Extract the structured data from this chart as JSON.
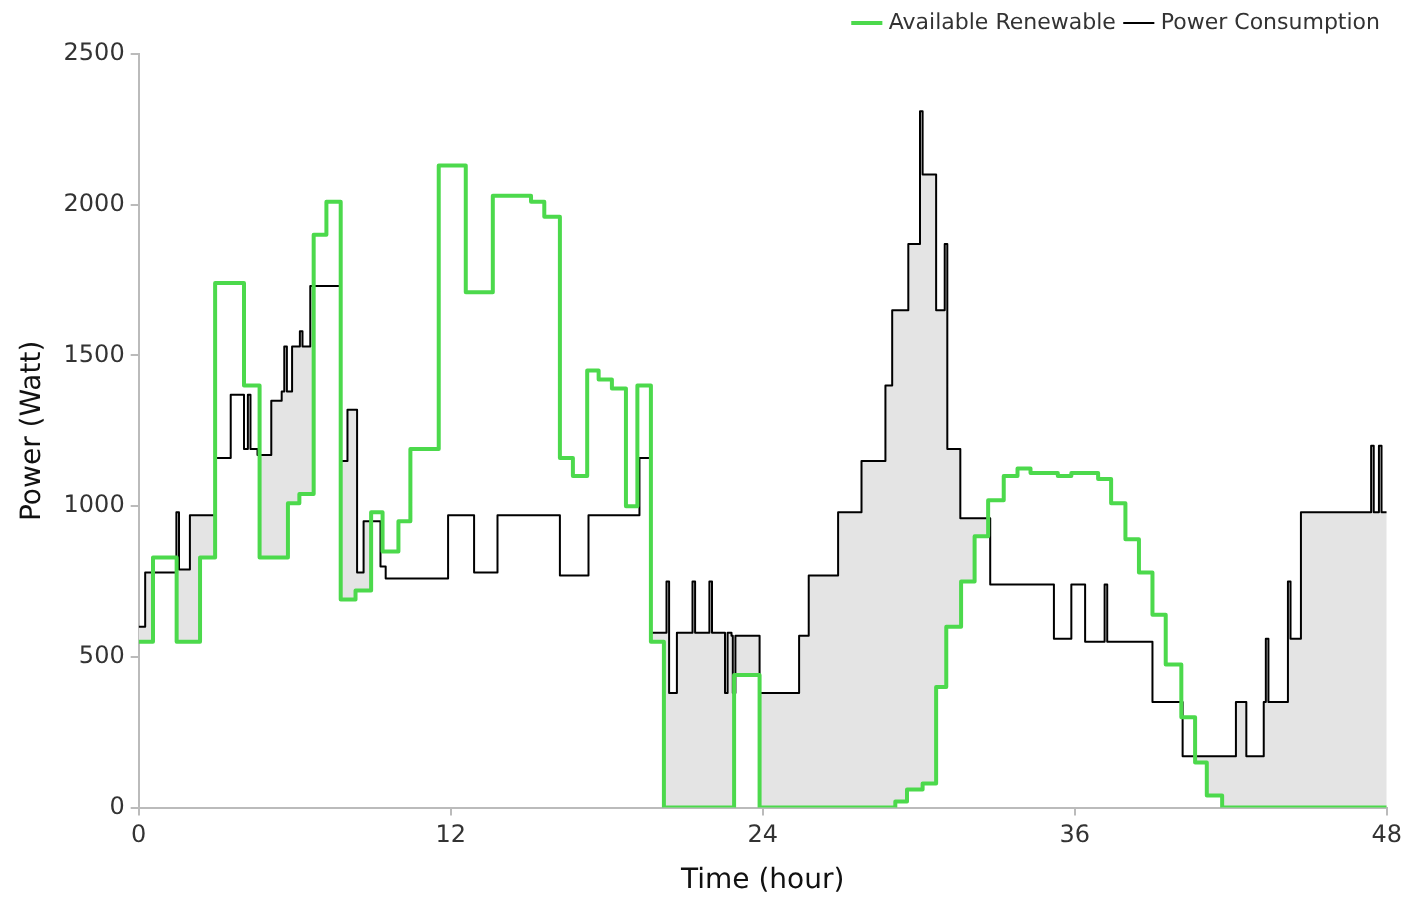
{
  "chart_data": {
    "type": "step",
    "xlabel": "Time (hour)",
    "ylabel": "Power (Watt)",
    "xlim": [
      0,
      48
    ],
    "xticks": [
      0,
      12,
      24,
      36,
      48
    ],
    "ylim": [
      0,
      2500
    ],
    "yticks": [
      0,
      500,
      1000,
      1500,
      2000,
      2500
    ],
    "grid": false,
    "legend": "top right",
    "marker": "none",
    "line_style": "solid",
    "series": [
      {
        "name": "Available Renewable",
        "color": "#4cd94c",
        "x": [
          0,
          0.55,
          1.46,
          2.36,
          2.94,
          4.05,
          4.65,
          5.74,
          6.18,
          6.73,
          7.22,
          7.77,
          8.34,
          8.94,
          9.38,
          9.99,
          10.45,
          11.54,
          12.58,
          13.62,
          15.09,
          15.6,
          16.2,
          16.7,
          17.25,
          17.69,
          18.2,
          18.74,
          19.18,
          19.7,
          20.2,
          22.9,
          23.88,
          29.1,
          29.55,
          30.15,
          30.67,
          31.06,
          31.63,
          32.15,
          32.67,
          33.27,
          33.8,
          34.3,
          35.35,
          35.87,
          36.9,
          37.4,
          37.95,
          38.47,
          38.99,
          39.5,
          40.1,
          40.63,
          41.08,
          41.67,
          48
        ],
        "values": [
          550,
          830,
          550,
          830,
          1740,
          1400,
          830,
          1010,
          1040,
          1900,
          2010,
          690,
          720,
          980,
          850,
          950,
          1190,
          2130,
          1710,
          2030,
          2010,
          1960,
          1160,
          1100,
          1450,
          1420,
          1390,
          1000,
          1400,
          550,
          0,
          440,
          0,
          20,
          60,
          80,
          400,
          600,
          750,
          900,
          1020,
          1100,
          1125,
          1110,
          1100,
          1110,
          1090,
          1010,
          890,
          780,
          640,
          475,
          300,
          150,
          40,
          0,
          0
        ]
      },
      {
        "name": "Power Consumption",
        "color": "#000000",
        "x": [
          0,
          0.25,
          0.55,
          1.45,
          1.46,
          1.55,
          1.97,
          2.36,
          2.94,
          3.54,
          4.05,
          4.2,
          4.3,
          4.57,
          4.65,
          5.1,
          5.5,
          5.6,
          5.7,
          5.74,
          5.9,
          6.18,
          6.2,
          6.3,
          6.6,
          6.73,
          7.77,
          8.03,
          8.34,
          8.4,
          8.65,
          8.94,
          9.3,
          9.5,
          11.9,
          12.9,
          13.8,
          16.2,
          17.3,
          19.26,
          19.7,
          20.2,
          20.3,
          20.4,
          20.7,
          21.3,
          21.4,
          21.95,
          22.05,
          22.55,
          22.65,
          22.8,
          22.85,
          22.9,
          22.95,
          23.88,
          25.4,
          25.77,
          26.9,
          27.8,
          28.72,
          28.98,
          29.1,
          29.55,
          29.6,
          30.05,
          30.15,
          30.67,
          31.0,
          31.06,
          31.1,
          31.6,
          31.63,
          32.15,
          32.67,
          32.75,
          35.2,
          35.87,
          36.4,
          37.15,
          37.25,
          38.99,
          40.1,
          40.15,
          40.63,
          41.08,
          41.67,
          42.2,
          42.6,
          43.27,
          43.35,
          43.45,
          44.2,
          44.3,
          44.7,
          47.4,
          47.5,
          47.7,
          47.8,
          48
        ],
        "values": [
          600,
          780,
          780,
          980,
          980,
          790,
          970,
          970,
          1160,
          1370,
          1190,
          1370,
          1190,
          1170,
          1170,
          1350,
          1380,
          1530,
          1380,
          1380,
          1530,
          1530,
          1580,
          1530,
          1730,
          1730,
          1150,
          1320,
          1320,
          780,
          950,
          950,
          800,
          760,
          970,
          780,
          970,
          770,
          970,
          1160,
          580,
          580,
          750,
          380,
          580,
          750,
          580,
          750,
          580,
          380,
          580,
          570,
          380,
          380,
          570,
          380,
          570,
          770,
          980,
          1150,
          1400,
          1650,
          1650,
          1650,
          1870,
          2310,
          2100,
          1650,
          1870,
          1870,
          1190,
          960,
          960,
          960,
          960,
          740,
          560,
          740,
          550,
          740,
          550,
          350,
          350,
          170,
          170,
          170,
          170,
          350,
          170,
          350,
          560,
          350,
          750,
          560,
          980,
          1200,
          980,
          1200,
          980,
          980
        ],
        "upper": [
          600,
          780,
          780,
          980,
          980,
          790,
          970,
          970,
          1160,
          1370,
          1190,
          1370,
          1190,
          1170,
          1170,
          1350,
          1380,
          1530,
          1380,
          1380,
          1530,
          1530,
          1580,
          1530,
          1730,
          1730,
          1150,
          1320,
          1320,
          780,
          950,
          950,
          800,
          760,
          970,
          780,
          970,
          770,
          970,
          1160,
          580,
          580,
          750,
          380,
          580,
          750,
          580,
          750,
          580,
          380,
          580,
          570,
          380,
          380,
          570,
          380,
          570,
          770,
          980,
          1150,
          1400,
          1650,
          1650,
          1650,
          1870,
          2310,
          2100,
          1650,
          1870,
          1870,
          1190,
          960,
          960,
          960,
          960,
          740,
          560,
          740,
          550,
          740,
          550,
          350,
          350,
          170,
          170,
          170,
          170,
          350,
          170,
          350,
          560,
          350,
          750,
          560,
          980,
          1200,
          980,
          1200,
          980,
          980
        ],
        "lower": [
          550,
          550,
          780,
          830,
          550,
          550,
          550,
          830,
          1160,
          1370,
          1190,
          1370,
          1190,
          1170,
          830,
          830,
          830,
          830,
          830,
          1010,
          1010,
          1040,
          1040,
          1040,
          1040,
          1730,
          690,
          690,
          720,
          720,
          720,
          950,
          800,
          760,
          970,
          780,
          970,
          770,
          970,
          1160,
          550,
          0,
          0,
          0,
          0,
          0,
          0,
          0,
          0,
          0,
          0,
          0,
          0,
          380,
          440,
          0,
          0,
          0,
          0,
          0,
          0,
          0,
          20,
          60,
          60,
          60,
          80,
          400,
          400,
          600,
          600,
          600,
          750,
          900,
          960,
          740,
          560,
          740,
          550,
          740,
          550,
          350,
          300,
          170,
          150,
          40,
          0,
          0,
          0,
          0,
          0,
          0,
          0,
          0,
          0,
          0,
          0,
          0,
          0,
          0
        ]
      }
    ]
  }
}
